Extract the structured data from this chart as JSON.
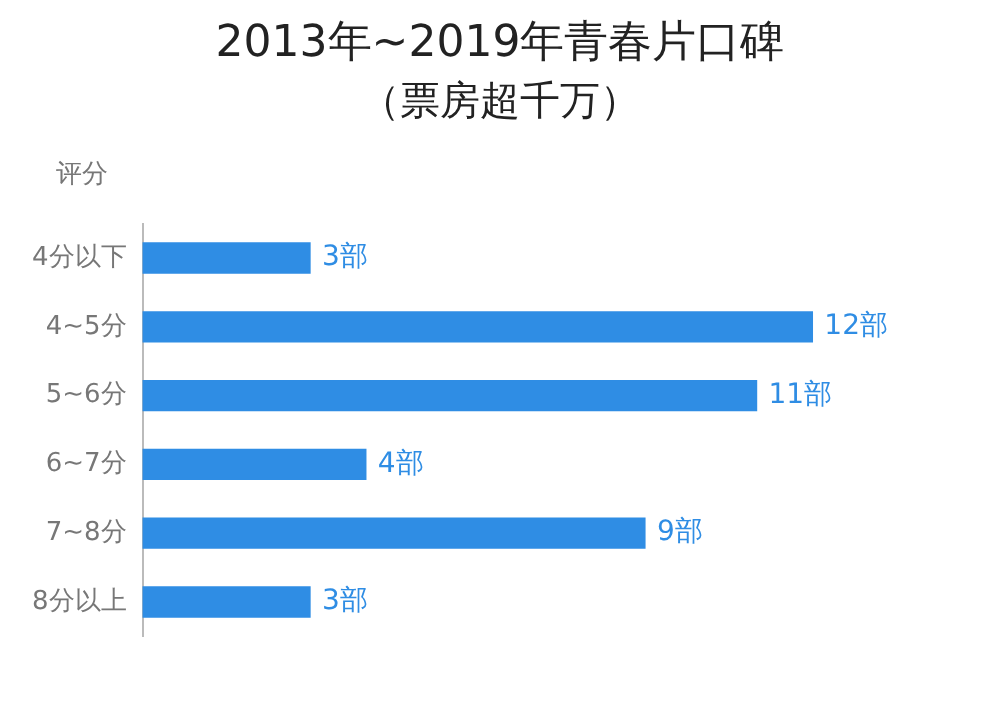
{
  "chart_data": {
    "type": "bar",
    "orientation": "horizontal",
    "title": "2013年~2019年青春片口碑",
    "subtitle": "（票房超千万）",
    "ylabel": "评分",
    "categories": [
      "4分以下",
      "4~5分",
      "5~6分",
      "6~7分",
      "7~8分",
      "8分以上"
    ],
    "values": [
      3,
      12,
      11,
      4,
      9,
      3
    ],
    "value_labels": [
      "3部",
      "12部",
      "11部",
      "4部",
      "9部",
      "3部"
    ],
    "color": "#2f8de4",
    "grid": false,
    "legend": false,
    "tick_labels": "y"
  }
}
